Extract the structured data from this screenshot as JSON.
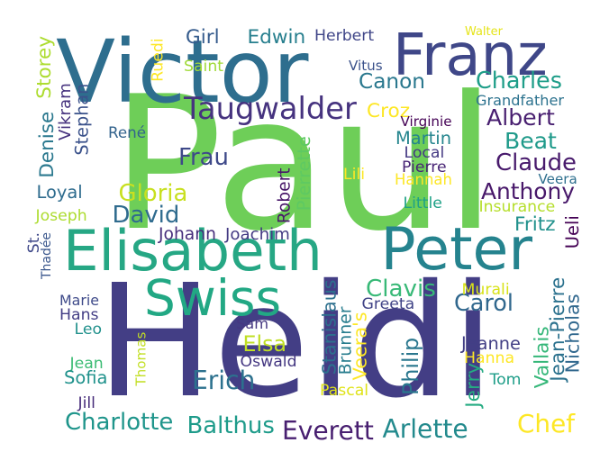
{
  "word_cloud": {
    "words": [
      {
        "text": "Heidi",
        "color": "#433e85"
      },
      {
        "text": "Paul",
        "color": "#6ece58"
      },
      {
        "text": "Victor",
        "color": "#2e6e8e"
      },
      {
        "text": "Elisabeth",
        "color": "#26a784"
      },
      {
        "text": "Peter",
        "color": "#25838e"
      },
      {
        "text": "Franz",
        "color": "#3f4788"
      },
      {
        "text": "Swiss",
        "color": "#22a884"
      },
      {
        "text": "Taugwalder",
        "color": "#46337f"
      },
      {
        "text": "Girl",
        "color": "#365c8d"
      },
      {
        "text": "Edwin",
        "color": "#277f8e"
      },
      {
        "text": "Herbert",
        "color": "#404688"
      },
      {
        "text": "Walter",
        "color": "#e5e419"
      },
      {
        "text": "Ruedi",
        "color": "#fde725"
      },
      {
        "text": "Saint",
        "color": "#a0da39"
      },
      {
        "text": "Vitus",
        "color": "#3b528b"
      },
      {
        "text": "Canon",
        "color": "#2a788e"
      },
      {
        "text": "Charles",
        "color": "#1f9e89"
      },
      {
        "text": "Grandfather",
        "color": "#2c728e"
      },
      {
        "text": "Albert",
        "color": "#481f70"
      },
      {
        "text": "Croz",
        "color": "#fde725"
      },
      {
        "text": "Virginie",
        "color": "#440154"
      },
      {
        "text": "Beat",
        "color": "#1f9a8a"
      },
      {
        "text": "Martin",
        "color": "#25858e"
      },
      {
        "text": "Local",
        "color": "#443983"
      },
      {
        "text": "Pierre",
        "color": "#482475"
      },
      {
        "text": "Claude",
        "color": "#481a6c"
      },
      {
        "text": "Hannah",
        "color": "#fde725"
      },
      {
        "text": "Veera",
        "color": "#2e6f8e"
      },
      {
        "text": "Anthony",
        "color": "#48186a"
      },
      {
        "text": "Little",
        "color": "#1fa187"
      },
      {
        "text": "Insurance",
        "color": "#b5de2b"
      },
      {
        "text": "Fritz",
        "color": "#21918c"
      },
      {
        "text": "Ueli",
        "color": "#440154"
      },
      {
        "text": "Lili",
        "color": "#fde725"
      },
      {
        "text": "Pierrette",
        "color": "#5ec962"
      },
      {
        "text": "Robert",
        "color": "#481769"
      },
      {
        "text": "Denise",
        "color": "#2a788e"
      },
      {
        "text": "Storey",
        "color": "#addc30"
      },
      {
        "text": "Vikram",
        "color": "#46327e"
      },
      {
        "text": "Stephan",
        "color": "#3b528b"
      },
      {
        "text": "René",
        "color": "#33638d"
      },
      {
        "text": "Frau",
        "color": "#3e4989"
      },
      {
        "text": "Gloria",
        "color": "#c8e020"
      },
      {
        "text": "Loyal",
        "color": "#2f6c8e"
      },
      {
        "text": "David",
        "color": "#2f6b8e"
      },
      {
        "text": "Joseph",
        "color": "#addc30"
      },
      {
        "text": "St.",
        "color": "#3f4889"
      },
      {
        "text": "Thadée",
        "color": "#39568c"
      },
      {
        "text": "Johann",
        "color": "#472e7c"
      },
      {
        "text": "Joachim",
        "color": "#443a83"
      },
      {
        "text": "Clavis",
        "color": "#38b977"
      },
      {
        "text": "Carol",
        "color": "#31688e"
      },
      {
        "text": "Murali",
        "color": "#d8e219"
      },
      {
        "text": "Stanislaus",
        "color": "#2d708e"
      },
      {
        "text": "Brunner",
        "color": "#287d8e"
      },
      {
        "text": "Greeta",
        "color": "#414487"
      },
      {
        "text": "Veera's",
        "color": "#fde725"
      },
      {
        "text": "Marie",
        "color": "#3e4a89"
      },
      {
        "text": "Hans",
        "color": "#433e85"
      },
      {
        "text": "Leo",
        "color": "#21918c"
      },
      {
        "text": "Sam",
        "color": "#453781"
      },
      {
        "text": "Thomas",
        "color": "#c2df23"
      },
      {
        "text": "Elsa",
        "color": "#c0df25"
      },
      {
        "text": "Oswald",
        "color": "#453882"
      },
      {
        "text": "Philip",
        "color": "#2a778e"
      },
      {
        "text": "Jeanne",
        "color": "#423f85"
      },
      {
        "text": "Hanna",
        "color": "#fde725"
      },
      {
        "text": "Jerry",
        "color": "#25ab82"
      },
      {
        "text": "Tom",
        "color": "#1f9e89"
      },
      {
        "text": "Vallais",
        "color": "#35b779"
      },
      {
        "text": "Jean-Pierre",
        "color": "#2c728e"
      },
      {
        "text": "Nicholas",
        "color": "#31688e"
      },
      {
        "text": "Jean",
        "color": "#3dbc74"
      },
      {
        "text": "Sofia",
        "color": "#20928c"
      },
      {
        "text": "Erich",
        "color": "#2c718e"
      },
      {
        "text": "Pascal",
        "color": "#dfe318"
      },
      {
        "text": "Jill",
        "color": "#472c7a"
      },
      {
        "text": "Charlotte",
        "color": "#1f958b"
      },
      {
        "text": "Balthus",
        "color": "#1e9b8a"
      },
      {
        "text": "Everett",
        "color": "#481f70"
      },
      {
        "text": "Arlette",
        "color": "#238a8d"
      },
      {
        "text": "Chef",
        "color": "#fde725"
      }
    ]
  }
}
